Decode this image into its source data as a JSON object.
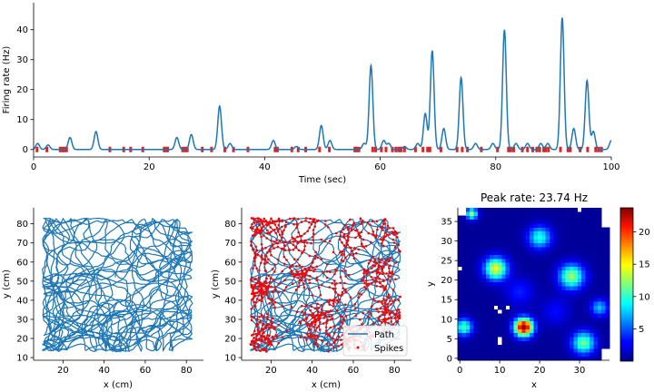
{
  "chart_data": [
    {
      "type": "line",
      "xlabel": "Time (sec)",
      "ylabel": "Firing rate (Hz)",
      "xlim": [
        0,
        100
      ],
      "ylim": [
        -2.5,
        49
      ],
      "xticks": [
        0,
        20,
        40,
        60,
        80,
        100
      ],
      "yticks": [
        0,
        10,
        20,
        30,
        40
      ],
      "line_color": "#1f77b4",
      "spike_color": "#d62728",
      "peaks": [
        {
          "t": 0.7,
          "h": 2
        },
        {
          "t": 2.5,
          "h": 1.5
        },
        {
          "t": 6.3,
          "h": 4
        },
        {
          "t": 10.8,
          "h": 6
        },
        {
          "t": 24.8,
          "h": 4
        },
        {
          "t": 27.3,
          "h": 5
        },
        {
          "t": 32.2,
          "h": 14.5
        },
        {
          "t": 34.0,
          "h": 2
        },
        {
          "t": 41.5,
          "h": 3
        },
        {
          "t": 45.5,
          "h": 1
        },
        {
          "t": 49.8,
          "h": 8
        },
        {
          "t": 51.3,
          "h": 3
        },
        {
          "t": 57.2,
          "h": 2
        },
        {
          "t": 58.4,
          "h": 28
        },
        {
          "t": 60.6,
          "h": 3
        },
        {
          "t": 61.5,
          "h": 2
        },
        {
          "t": 64.2,
          "h": 1
        },
        {
          "t": 66.5,
          "h": 2
        },
        {
          "t": 67.8,
          "h": 12
        },
        {
          "t": 69.0,
          "h": 33
        },
        {
          "t": 71.0,
          "h": 7
        },
        {
          "t": 74.0,
          "h": 24
        },
        {
          "t": 76.5,
          "h": 2
        },
        {
          "t": 79.5,
          "h": 2
        },
        {
          "t": 81.5,
          "h": 40
        },
        {
          "t": 83.5,
          "h": 2
        },
        {
          "t": 85.5,
          "h": 2
        },
        {
          "t": 87.8,
          "h": 2
        },
        {
          "t": 89.0,
          "h": 2
        },
        {
          "t": 91.5,
          "h": 44
        },
        {
          "t": 93.5,
          "h": 7
        },
        {
          "t": 95.8,
          "h": 23
        },
        {
          "t": 96.9,
          "h": 6
        },
        {
          "t": 100,
          "h": 3
        }
      ],
      "spike_times": [
        0.6,
        2.3,
        4.6,
        5.0,
        5.3,
        5.7,
        13.2,
        15.6,
        16.8,
        18.9,
        22.6,
        22.9,
        23.2,
        25.8,
        26.2,
        26.6,
        29.2,
        30.8,
        33.1,
        34.6,
        37.1,
        41.8,
        42.2,
        44.7,
        45.8,
        47.1,
        49.5,
        51.2,
        55.6,
        55.9,
        56.3,
        58.7,
        59.2,
        60.2,
        61.0,
        62.1,
        62.7,
        63.2,
        63.6,
        64.2,
        66.1,
        67.4,
        68.2,
        68.6,
        70.5,
        73.3,
        74.2,
        75.1,
        77.5,
        80.3,
        82.2,
        82.6,
        83.1,
        84.6,
        85.5,
        86.4,
        87.1,
        87.6,
        88.3,
        88.6,
        89.1,
        91.2,
        92.5,
        92.9,
        94.6,
        95.9,
        97.3,
        97.8,
        98.3
      ]
    },
    {
      "type": "line",
      "xlabel": "x (cm)",
      "ylabel": "y (cm)",
      "xlim": [
        5.7,
        88.3
      ],
      "ylim": [
        8.6,
        88.4
      ],
      "xticks": [
        20,
        40,
        60,
        80
      ],
      "yticks": [
        10,
        20,
        30,
        40,
        50,
        60,
        70,
        80
      ],
      "arena": [
        10,
        83,
        13,
        83
      ],
      "path_color": "#1f77b4"
    },
    {
      "type": "scatter",
      "xlabel": "x (cm)",
      "ylabel": "y (cm)",
      "xlim": [
        5.7,
        88.3
      ],
      "ylim": [
        8.6,
        88.4
      ],
      "xticks": [
        20,
        40,
        60,
        80
      ],
      "yticks": [
        10,
        20,
        30,
        40,
        50,
        60,
        70,
        80
      ],
      "legend": {
        "placement": "lower right",
        "entries": [
          {
            "label": "Path",
            "color": "#1f77b4"
          },
          {
            "label": "Spikes",
            "color": "#ff0000"
          }
        ]
      },
      "spike_fields": [
        [
          14,
          22
        ],
        [
          14,
          45
        ],
        [
          16,
          62
        ],
        [
          13,
          80
        ],
        [
          22,
          80
        ],
        [
          36,
          56
        ],
        [
          32,
          69
        ],
        [
          44,
          30
        ],
        [
          52,
          45
        ],
        [
          60,
          20
        ],
        [
          60,
          72
        ],
        [
          72,
          52
        ],
        [
          77,
          34
        ],
        [
          80,
          80
        ],
        [
          38,
          80
        ]
      ]
    },
    {
      "type": "heatmap",
      "title": "Peak rate: 23.74 Hz",
      "xlabel": "x",
      "ylabel": "y",
      "xlim": [
        -0.5,
        37.5
      ],
      "ylim": [
        -0.5,
        38.5
      ],
      "xticks": [
        0,
        10,
        20,
        30
      ],
      "yticks": [
        0,
        5,
        10,
        15,
        20,
        25,
        30,
        35
      ],
      "colormap": "jet",
      "vmin": 0,
      "vmax": 23.74,
      "colorbar_ticks": [
        5,
        10,
        15,
        20
      ],
      "fields": [
        {
          "x": 16,
          "y": 8,
          "peak": 23.74,
          "sigma": 1.6
        },
        {
          "x": 9,
          "y": 23,
          "peak": 14,
          "sigma": 2.0
        },
        {
          "x": 1,
          "y": 8,
          "peak": 10,
          "sigma": 1.5
        },
        {
          "x": 28,
          "y": 21,
          "peak": 12,
          "sigma": 2.2
        },
        {
          "x": 31,
          "y": 4,
          "peak": 11,
          "sigma": 2.0
        },
        {
          "x": 20,
          "y": 31,
          "peak": 9,
          "sigma": 2.0
        },
        {
          "x": 3,
          "y": 37,
          "peak": 12,
          "sigma": 1.0
        },
        {
          "x": 35,
          "y": 13,
          "peak": 7,
          "sigma": 1.5
        },
        {
          "x": 15,
          "y": 17,
          "peak": 3,
          "sigma": 2.5
        },
        {
          "x": 24,
          "y": 12,
          "peak": 2.5,
          "sigma": 2.5
        }
      ]
    }
  ]
}
